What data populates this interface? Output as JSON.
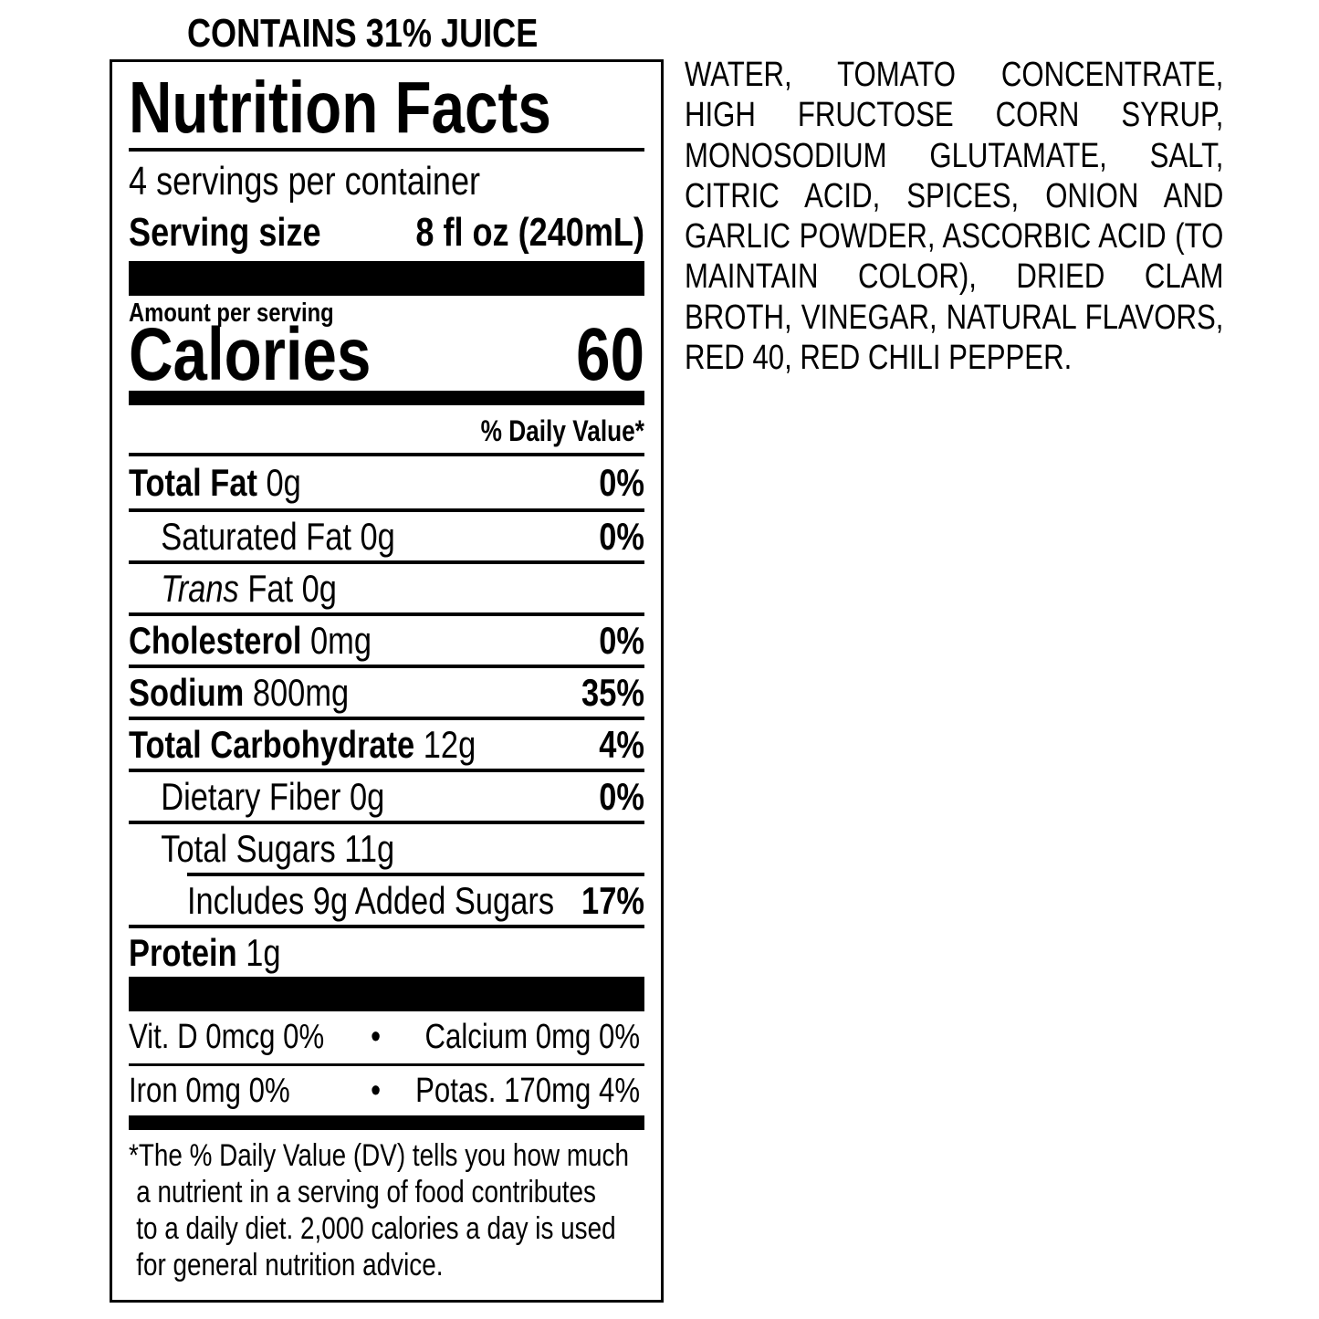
{
  "header": {
    "juice": "CONTAINS 31% JUICE"
  },
  "label": {
    "title": "Nutrition Facts",
    "servings": "4 servings per container",
    "serving_size": {
      "label": "Serving size",
      "value": "8 fl oz (240mL)"
    },
    "amount_per_serving": "Amount per serving",
    "calories": {
      "label": "Calories",
      "value": "60"
    },
    "daily_value_header": "% Daily Value*",
    "nutrients": [
      {
        "name": "Total Fat",
        "amount": "0g",
        "dv": "0%"
      },
      {
        "name": "Saturated Fat",
        "amount": "0g",
        "dv": "0%"
      },
      {
        "name_italic": "Trans",
        "name": "Fat",
        "amount": "0g"
      },
      {
        "name": "Cholesterol",
        "amount": "0mg",
        "dv": "0%"
      },
      {
        "name": "Sodium",
        "amount": "800mg",
        "dv": "35%"
      },
      {
        "name": "Total Carbohydrate",
        "amount": "12g",
        "dv": "4%"
      },
      {
        "name": "Dietary Fiber",
        "amount": "0g",
        "dv": "0%"
      },
      {
        "name": "Total Sugars",
        "amount": "11g"
      },
      {
        "name": "Includes 9g Added Sugars",
        "dv": "17%"
      },
      {
        "name": "Protein",
        "amount": "1g"
      }
    ],
    "vitamins": [
      [
        "Vit. D 0mcg 0%",
        "Calcium 0mg 0%"
      ],
      [
        "Iron 0mg 0%",
        "Potas. 170mg 4%"
      ]
    ],
    "footnote": [
      "*The % Daily Value (DV) tells you how much",
      "a nutrient in a serving of food contributes",
      "to a daily diet. 2,000 calories a day is used",
      "for general nutrition advice."
    ]
  },
  "ingredients": "WATER, TOMATO CONCENTRATE, HIGH FRUCTOSE CORN SYRUP, MONOSODIUM GLUTAMATE, SALT, CITRIC ACID, SPICES, ONION AND GARLIC POWDER, ASCORBIC ACID (TO MAINTAIN COLOR), DRIED CLAM BROTH, VINEGAR, NATURAL FLAVORS, RED 40, RED CHILI PEPPER."
}
